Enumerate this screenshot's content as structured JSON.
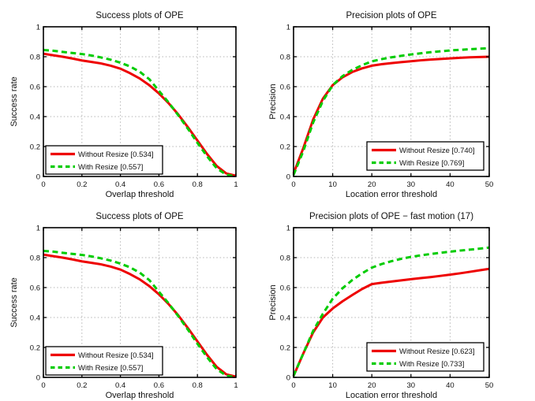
{
  "figure": {
    "background": "#ffffff",
    "layout": "2x2 grid of MATLAB-style benchmark plots"
  },
  "colors": {
    "without_resize": "#ee0000",
    "with_resize": "#00cc00",
    "grid": "#b5b5b5",
    "axis": "#000000",
    "legend_background": "#ffffff",
    "legend_border": "#000000"
  },
  "chart_data": [
    {
      "id": "success-ope-row1",
      "type": "line",
      "title": "Success plots of OPE",
      "xlabel": "Overlap threshold",
      "ylabel": "Success rate",
      "xlim": [
        0,
        1
      ],
      "ylim": [
        0,
        1
      ],
      "xticks": [
        0,
        0.2,
        0.4,
        0.6,
        0.8,
        1
      ],
      "xtick_labels": [
        "0",
        "0.2",
        "0.4",
        "0.6",
        "0.8",
        "1"
      ],
      "yticks": [
        0,
        0.2,
        0.4,
        0.6,
        0.8,
        1
      ],
      "ytick_labels": [
        "0",
        "0.2",
        "0.4",
        "0.6",
        "0.8",
        "1"
      ],
      "grid": true,
      "legend_position": "bottom-left",
      "x": [
        0,
        0.05,
        0.1,
        0.15,
        0.2,
        0.25,
        0.3,
        0.35,
        0.4,
        0.45,
        0.5,
        0.55,
        0.6,
        0.65,
        0.7,
        0.75,
        0.8,
        0.85,
        0.9,
        0.95,
        1
      ],
      "series": [
        {
          "name": "Without Resize [0.534]",
          "color_key": "without_resize",
          "style": "solid",
          "values": [
            0.82,
            0.81,
            0.8,
            0.788,
            0.775,
            0.765,
            0.755,
            0.74,
            0.72,
            0.69,
            0.655,
            0.61,
            0.555,
            0.49,
            0.415,
            0.33,
            0.24,
            0.15,
            0.07,
            0.02,
            0.005
          ]
        },
        {
          "name": "With Resize [0.557]",
          "color_key": "with_resize",
          "style": "dashed",
          "values": [
            0.845,
            0.84,
            0.832,
            0.825,
            0.818,
            0.808,
            0.795,
            0.78,
            0.76,
            0.735,
            0.7,
            0.65,
            0.572,
            0.495,
            0.41,
            0.32,
            0.225,
            0.135,
            0.055,
            0.012,
            0.0
          ]
        }
      ]
    },
    {
      "id": "precision-ope-row1",
      "type": "line",
      "title": "Precision plots of OPE",
      "xlabel": "Location error threshold",
      "ylabel": "Precision",
      "xlim": [
        0,
        50
      ],
      "ylim": [
        0,
        1
      ],
      "xticks": [
        0,
        10,
        20,
        30,
        40,
        50
      ],
      "xtick_labels": [
        "0",
        "10",
        "20",
        "30",
        "40",
        "50"
      ],
      "yticks": [
        0,
        0.2,
        0.4,
        0.6,
        0.8,
        1
      ],
      "ytick_labels": [
        "0",
        "0.2",
        "0.4",
        "0.6",
        "0.8",
        "1"
      ],
      "grid": true,
      "legend_position": "bottom-right",
      "x": [
        0,
        2.5,
        5,
        7.5,
        10,
        12.5,
        15,
        17.5,
        20,
        22.5,
        25,
        27.5,
        30,
        32.5,
        35,
        37.5,
        40,
        42.5,
        45,
        47.5,
        50
      ],
      "series": [
        {
          "name": "Without Resize [0.740]",
          "color_key": "without_resize",
          "style": "solid",
          "values": [
            0.02,
            0.19,
            0.38,
            0.52,
            0.61,
            0.662,
            0.698,
            0.722,
            0.74,
            0.75,
            0.757,
            0.764,
            0.77,
            0.776,
            0.781,
            0.785,
            0.789,
            0.793,
            0.796,
            0.798,
            0.8
          ]
        },
        {
          "name": "With Resize [0.769]",
          "color_key": "with_resize",
          "style": "dashed",
          "values": [
            0.01,
            0.17,
            0.36,
            0.505,
            0.61,
            0.67,
            0.712,
            0.743,
            0.769,
            0.784,
            0.796,
            0.806,
            0.815,
            0.823,
            0.83,
            0.836,
            0.842,
            0.846,
            0.85,
            0.854,
            0.857
          ]
        }
      ]
    },
    {
      "id": "success-ope-row2",
      "type": "line",
      "title": "Success plots of OPE",
      "xlabel": "Overlap threshold",
      "ylabel": "Success rate",
      "xlim": [
        0,
        1
      ],
      "ylim": [
        0,
        1
      ],
      "xticks": [
        0,
        0.2,
        0.4,
        0.6,
        0.8,
        1
      ],
      "xtick_labels": [
        "0",
        "0.2",
        "0.4",
        "0.6",
        "0.8",
        "1"
      ],
      "yticks": [
        0,
        0.2,
        0.4,
        0.6,
        0.8,
        1
      ],
      "ytick_labels": [
        "0",
        "0.2",
        "0.4",
        "0.6",
        "0.8",
        "1"
      ],
      "grid": true,
      "legend_position": "bottom-left",
      "x": [
        0,
        0.05,
        0.1,
        0.15,
        0.2,
        0.25,
        0.3,
        0.35,
        0.4,
        0.45,
        0.5,
        0.55,
        0.6,
        0.65,
        0.7,
        0.75,
        0.8,
        0.85,
        0.9,
        0.95,
        1
      ],
      "series": [
        {
          "name": "Without Resize [0.534]",
          "color_key": "without_resize",
          "style": "solid",
          "values": [
            0.82,
            0.81,
            0.8,
            0.788,
            0.775,
            0.765,
            0.755,
            0.74,
            0.72,
            0.69,
            0.655,
            0.61,
            0.555,
            0.49,
            0.415,
            0.33,
            0.24,
            0.15,
            0.07,
            0.02,
            0.005
          ]
        },
        {
          "name": "With Resize [0.557]",
          "color_key": "with_resize",
          "style": "dashed",
          "values": [
            0.845,
            0.84,
            0.832,
            0.825,
            0.818,
            0.808,
            0.795,
            0.78,
            0.76,
            0.735,
            0.7,
            0.65,
            0.572,
            0.495,
            0.41,
            0.32,
            0.225,
            0.135,
            0.055,
            0.012,
            0.0
          ]
        }
      ]
    },
    {
      "id": "precision-ope-fast-motion",
      "type": "line",
      "title": "Precision plots of OPE − fast motion (17)",
      "xlabel": "Location error threshold",
      "ylabel": "Precision",
      "xlim": [
        0,
        50
      ],
      "ylim": [
        0,
        1
      ],
      "xticks": [
        0,
        10,
        20,
        30,
        40,
        50
      ],
      "xtick_labels": [
        "0",
        "10",
        "20",
        "30",
        "40",
        "50"
      ],
      "yticks": [
        0,
        0.2,
        0.4,
        0.6,
        0.8,
        1
      ],
      "ytick_labels": [
        "0",
        "0.2",
        "0.4",
        "0.6",
        "0.8",
        "1"
      ],
      "grid": true,
      "legend_position": "bottom-right",
      "x": [
        0,
        2.5,
        5,
        7.5,
        10,
        12.5,
        15,
        17.5,
        20,
        22.5,
        25,
        27.5,
        30,
        32.5,
        35,
        37.5,
        40,
        42.5,
        45,
        47.5,
        50
      ],
      "series": [
        {
          "name": "Without Resize [0.623]",
          "color_key": "without_resize",
          "style": "solid",
          "values": [
            0.01,
            0.16,
            0.3,
            0.4,
            0.46,
            0.508,
            0.55,
            0.59,
            0.623,
            0.632,
            0.64,
            0.648,
            0.656,
            0.663,
            0.67,
            0.678,
            0.686,
            0.695,
            0.705,
            0.715,
            0.725
          ]
        },
        {
          "name": "With Resize [0.733]",
          "color_key": "with_resize",
          "style": "dashed",
          "values": [
            0.01,
            0.16,
            0.31,
            0.425,
            0.525,
            0.595,
            0.65,
            0.695,
            0.733,
            0.757,
            0.776,
            0.792,
            0.805,
            0.815,
            0.824,
            0.832,
            0.84,
            0.847,
            0.853,
            0.86,
            0.867
          ]
        }
      ]
    }
  ]
}
